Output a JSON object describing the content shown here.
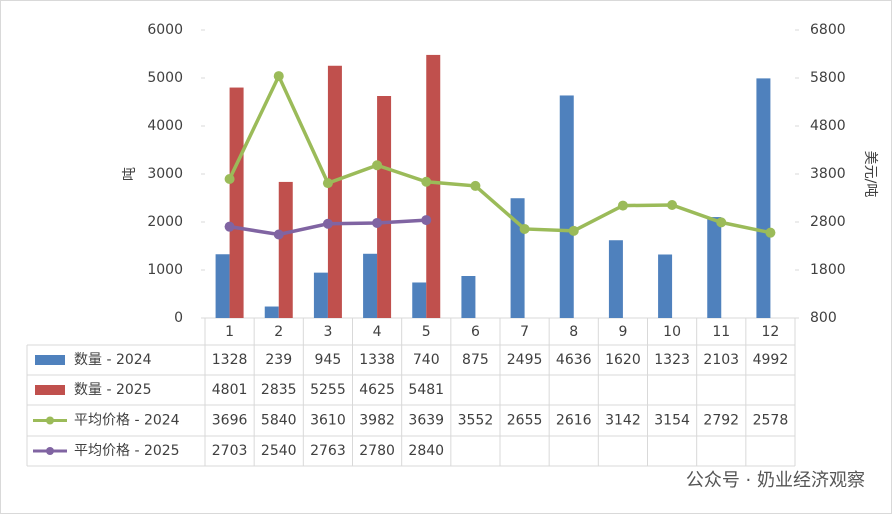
{
  "chart_data": {
    "type": "bar",
    "categories": [
      "1",
      "2",
      "3",
      "4",
      "5",
      "6",
      "7",
      "8",
      "9",
      "10",
      "11",
      "12"
    ],
    "y_label": "吨",
    "y2_label": "美元/吨",
    "ylim": [
      0,
      6000
    ],
    "yticks": [
      0,
      1000,
      2000,
      3000,
      4000,
      5000,
      6000
    ],
    "y2lim": [
      800,
      6800
    ],
    "y2ticks": [
      800,
      1800,
      2800,
      3800,
      4800,
      5800,
      6800
    ],
    "series": [
      {
        "name": "数量 - 2024",
        "type": "bar",
        "color": "#4f81bd",
        "values": [
          1328,
          239,
          945,
          1338,
          740,
          875,
          2495,
          4636,
          1620,
          1323,
          2103,
          4992
        ]
      },
      {
        "name": "数量 - 2025",
        "type": "bar",
        "color": "#c0504d",
        "values": [
          4801,
          2835,
          5255,
          4625,
          5481,
          null,
          null,
          null,
          null,
          null,
          null,
          null
        ]
      },
      {
        "name": "平均价格 - 2024",
        "type": "line",
        "axis": "y2",
        "color": "#9bbb59",
        "values": [
          3696,
          5840,
          3610,
          3982,
          3639,
          3552,
          2655,
          2616,
          3142,
          3154,
          2792,
          2578
        ]
      },
      {
        "name": "平均价格 - 2025",
        "type": "line",
        "axis": "y2",
        "color": "#8064a2",
        "values": [
          2703,
          2540,
          2763,
          2780,
          2840,
          null,
          null,
          null,
          null,
          null,
          null,
          null
        ]
      }
    ],
    "watermark": "公众号 · 奶业经济观察"
  }
}
